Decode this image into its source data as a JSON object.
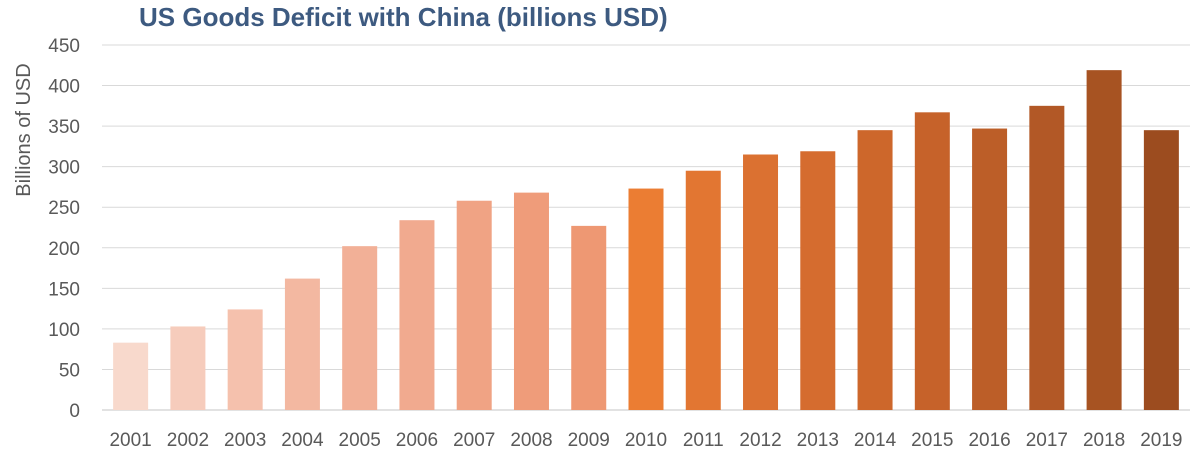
{
  "chart_data": {
    "type": "bar",
    "title": "US Goods Deficit with China (billions USD)",
    "xlabel": "",
    "ylabel": "Billions of USD",
    "ylim": [
      0,
      450
    ],
    "yticks": [
      0,
      50,
      100,
      150,
      200,
      250,
      300,
      350,
      400,
      450
    ],
    "grid": true,
    "categories": [
      "2001",
      "2002",
      "2003",
      "2004",
      "2005",
      "2006",
      "2007",
      "2008",
      "2009",
      "2010",
      "2011",
      "2012",
      "2013",
      "2014",
      "2015",
      "2016",
      "2017",
      "2018",
      "2019"
    ],
    "values": [
      83,
      103,
      124,
      162,
      202,
      234,
      258,
      268,
      227,
      273,
      295,
      315,
      319,
      345,
      367,
      347,
      375,
      419,
      345
    ],
    "bar_colors": [
      "#f8d9cc",
      "#f6ccbc",
      "#f5c1ad",
      "#f3b8a1",
      "#f2b097",
      "#f1aa8f",
      "#f0a384",
      "#ef9c7a",
      "#ee9873",
      "#eb7d33",
      "#e27632",
      "#db7131",
      "#d56c2f",
      "#cd672b",
      "#c6622a",
      "#bc5e28",
      "#b25826",
      "#a75322",
      "#9c4c1f"
    ],
    "gridline_color": "#d9d9d9",
    "title_color": "#3d5a80"
  }
}
